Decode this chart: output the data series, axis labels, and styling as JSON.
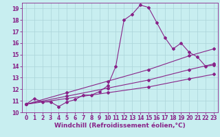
{
  "xlabel": "Windchill (Refroidissement éolien,°C)",
  "background_color": "#c8eef0",
  "grid_color": "#aad4d8",
  "line_color": "#882288",
  "xlim": [
    -0.5,
    23.5
  ],
  "ylim": [
    10,
    19.5
  ],
  "xticks": [
    0,
    1,
    2,
    3,
    4,
    5,
    6,
    7,
    8,
    9,
    10,
    11,
    12,
    13,
    14,
    15,
    16,
    17,
    18,
    19,
    20,
    21,
    22,
    23
  ],
  "yticks": [
    10,
    11,
    12,
    13,
    14,
    15,
    16,
    17,
    18,
    19
  ],
  "line1_x": [
    0,
    1,
    2,
    3,
    4,
    5,
    6,
    7,
    8,
    9,
    10,
    11,
    12,
    13,
    14,
    15,
    16,
    17,
    18,
    19,
    20,
    21,
    22,
    23
  ],
  "line1_y": [
    10.7,
    11.2,
    10.9,
    10.9,
    10.5,
    10.9,
    11.1,
    11.5,
    11.5,
    11.8,
    12.3,
    14.0,
    18.0,
    18.5,
    19.3,
    19.1,
    17.8,
    16.5,
    15.5,
    16.0,
    15.2,
    14.8,
    14.0,
    14.1
  ],
  "line2_x": [
    0,
    5,
    10,
    15,
    20,
    23
  ],
  "line2_y": [
    10.7,
    11.2,
    11.7,
    12.2,
    12.9,
    13.3
  ],
  "line3_x": [
    0,
    5,
    10,
    15,
    20,
    23
  ],
  "line3_y": [
    10.7,
    11.4,
    12.1,
    12.8,
    13.7,
    14.2
  ],
  "line4_x": [
    0,
    5,
    10,
    15,
    20,
    23
  ],
  "line4_y": [
    10.7,
    11.7,
    12.7,
    13.7,
    14.9,
    15.5
  ],
  "marker": "D",
  "markersize": 2,
  "linewidth": 0.8,
  "tick_fontsize": 5.5,
  "label_fontsize": 6.5
}
